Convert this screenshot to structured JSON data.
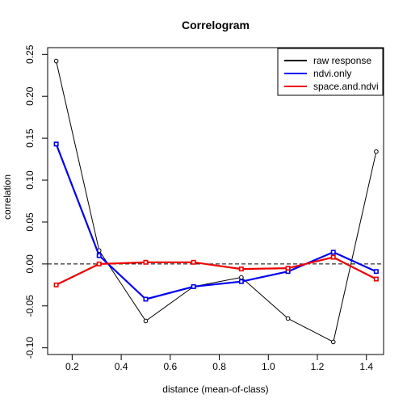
{
  "chart_data": {
    "type": "line",
    "title": "Correlogram",
    "xlabel": "distance (mean-of-class)",
    "ylabel": "correlation",
    "xlim": [
      0.1,
      1.47
    ],
    "ylim": [
      -0.108,
      0.258
    ],
    "xticks": [
      0.2,
      0.4,
      0.6,
      0.8,
      1.0,
      1.2,
      1.4
    ],
    "xtick_labels": [
      "0.2",
      "0.4",
      "0.6",
      "0.8",
      "1.0",
      "1.2",
      "1.4"
    ],
    "yticks": [
      -0.1,
      -0.05,
      0.0,
      0.05,
      0.1,
      0.15,
      0.2,
      0.25
    ],
    "ytick_labels": [
      "-0.10",
      "-0.05",
      "0.00",
      "0.05",
      "0.10",
      "0.15",
      "0.20",
      "0.25"
    ],
    "grid": false,
    "reference_line": {
      "y": 0,
      "style": "dashed"
    },
    "legend_position": "top-right",
    "x": [
      0.135,
      0.31,
      0.5,
      0.695,
      0.89,
      1.08,
      1.265,
      1.44
    ],
    "series": [
      {
        "name": "raw response",
        "color": "#000000",
        "marker": "circle",
        "values": [
          0.242,
          0.016,
          -0.068,
          -0.027,
          -0.016,
          -0.065,
          -0.093,
          0.134
        ]
      },
      {
        "name": "ndvi.only",
        "color": "#0000ee",
        "marker": "square",
        "values": [
          0.143,
          0.01,
          -0.042,
          -0.027,
          -0.021,
          -0.009,
          0.014,
          -0.009
        ]
      },
      {
        "name": "space.and.ndvi",
        "color": "#ee0000",
        "marker": "square",
        "values": [
          -0.025,
          0.0,
          0.002,
          0.002,
          -0.006,
          -0.005,
          0.008,
          -0.018
        ]
      }
    ]
  }
}
